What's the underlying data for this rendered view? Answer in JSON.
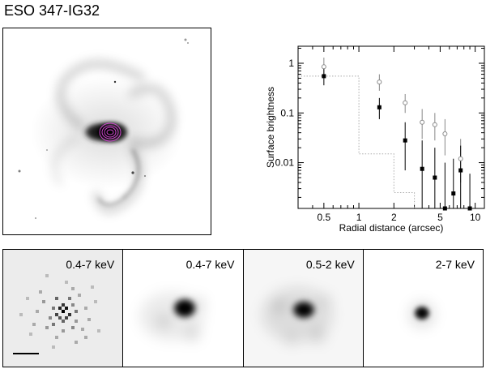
{
  "title": "ESO 347-IG32",
  "panels": [
    {
      "label": "0.4-7 keV",
      "style": "binned",
      "background": "#ececec"
    },
    {
      "label": "0.4-7 keV",
      "style": "smooth",
      "background": "#ffffff"
    },
    {
      "label": "0.5-2 keV",
      "style": "smooth-soft",
      "background": "#f6f6f6"
    },
    {
      "label": "2-7 keV",
      "style": "smooth-hard",
      "background": "#ffffff"
    }
  ],
  "chart_data": {
    "type": "scatter",
    "xlabel": "Radial distance (arcsec)",
    "ylabel": "Surface brightness",
    "xscale": "log",
    "yscale": "log",
    "xlim": [
      0.3,
      12
    ],
    "ylim": [
      0.0012,
      2.2
    ],
    "xticks": [
      0.5,
      1,
      2,
      5,
      10
    ],
    "xtick_labels": [
      "0.5",
      "1",
      "2",
      "5",
      "10"
    ],
    "yticks": [
      0.01,
      0.1,
      1
    ],
    "ytick_labels": [
      "0.01",
      "0.1",
      "1"
    ],
    "series": [
      {
        "marker": "open-circle",
        "color": "#888888",
        "points": [
          {
            "x": 0.5,
            "y": 0.85,
            "lo": 0.55,
            "hi": 1.3
          },
          {
            "x": 1.5,
            "y": 0.42,
            "lo": 0.28,
            "hi": 0.6
          },
          {
            "x": 2.5,
            "y": 0.16,
            "lo": 0.1,
            "hi": 0.24
          },
          {
            "x": 3.5,
            "y": 0.065,
            "lo": 0.03,
            "hi": 0.12
          },
          {
            "x": 4.5,
            "y": 0.058,
            "lo": 0.028,
            "hi": 0.1
          },
          {
            "x": 5.5,
            "y": 0.038,
            "lo": 0.014,
            "hi": 0.075
          },
          {
            "x": 7.5,
            "y": 0.012,
            "lo": 0.004,
            "hi": 0.03
          }
        ]
      },
      {
        "marker": "filled-square",
        "color": "#000000",
        "points": [
          {
            "x": 0.5,
            "y": 0.55,
            "lo": 0.36,
            "hi": 0.8
          },
          {
            "x": 1.5,
            "y": 0.13,
            "lo": 0.075,
            "hi": 0.2
          },
          {
            "x": 2.5,
            "y": 0.028,
            "lo": 0.007,
            "hi": 0.065
          },
          {
            "x": 3.5,
            "y": 0.0075,
            "lo": 0.0012,
            "hi": 0.028
          },
          {
            "x": 4.5,
            "y": 0.005,
            "lo": 0.0012,
            "hi": 0.02
          },
          {
            "x": 5.5,
            "y": 0.0012,
            "lo": 0.0012,
            "hi": 0.01
          },
          {
            "x": 6.5,
            "y": 0.0024,
            "lo": 0.0012,
            "hi": 0.012
          },
          {
            "x": 7.5,
            "y": 0.007,
            "lo": 0.0012,
            "hi": 0.022
          },
          {
            "x": 9.0,
            "y": 0.0012,
            "lo": 0.0012,
            "hi": 0.006
          }
        ]
      },
      {
        "style": "dotted-step",
        "color": "#aaaaaa",
        "steps": [
          {
            "x": 0.3,
            "y": 0.55
          },
          {
            "x": 1.0,
            "y": 0.55
          },
          {
            "x": 1.0,
            "y": 0.015
          },
          {
            "x": 2.0,
            "y": 0.015
          },
          {
            "x": 2.0,
            "y": 0.0025
          },
          {
            "x": 3.0,
            "y": 0.0025
          },
          {
            "x": 3.0,
            "y": 0.0012
          }
        ]
      }
    ]
  }
}
